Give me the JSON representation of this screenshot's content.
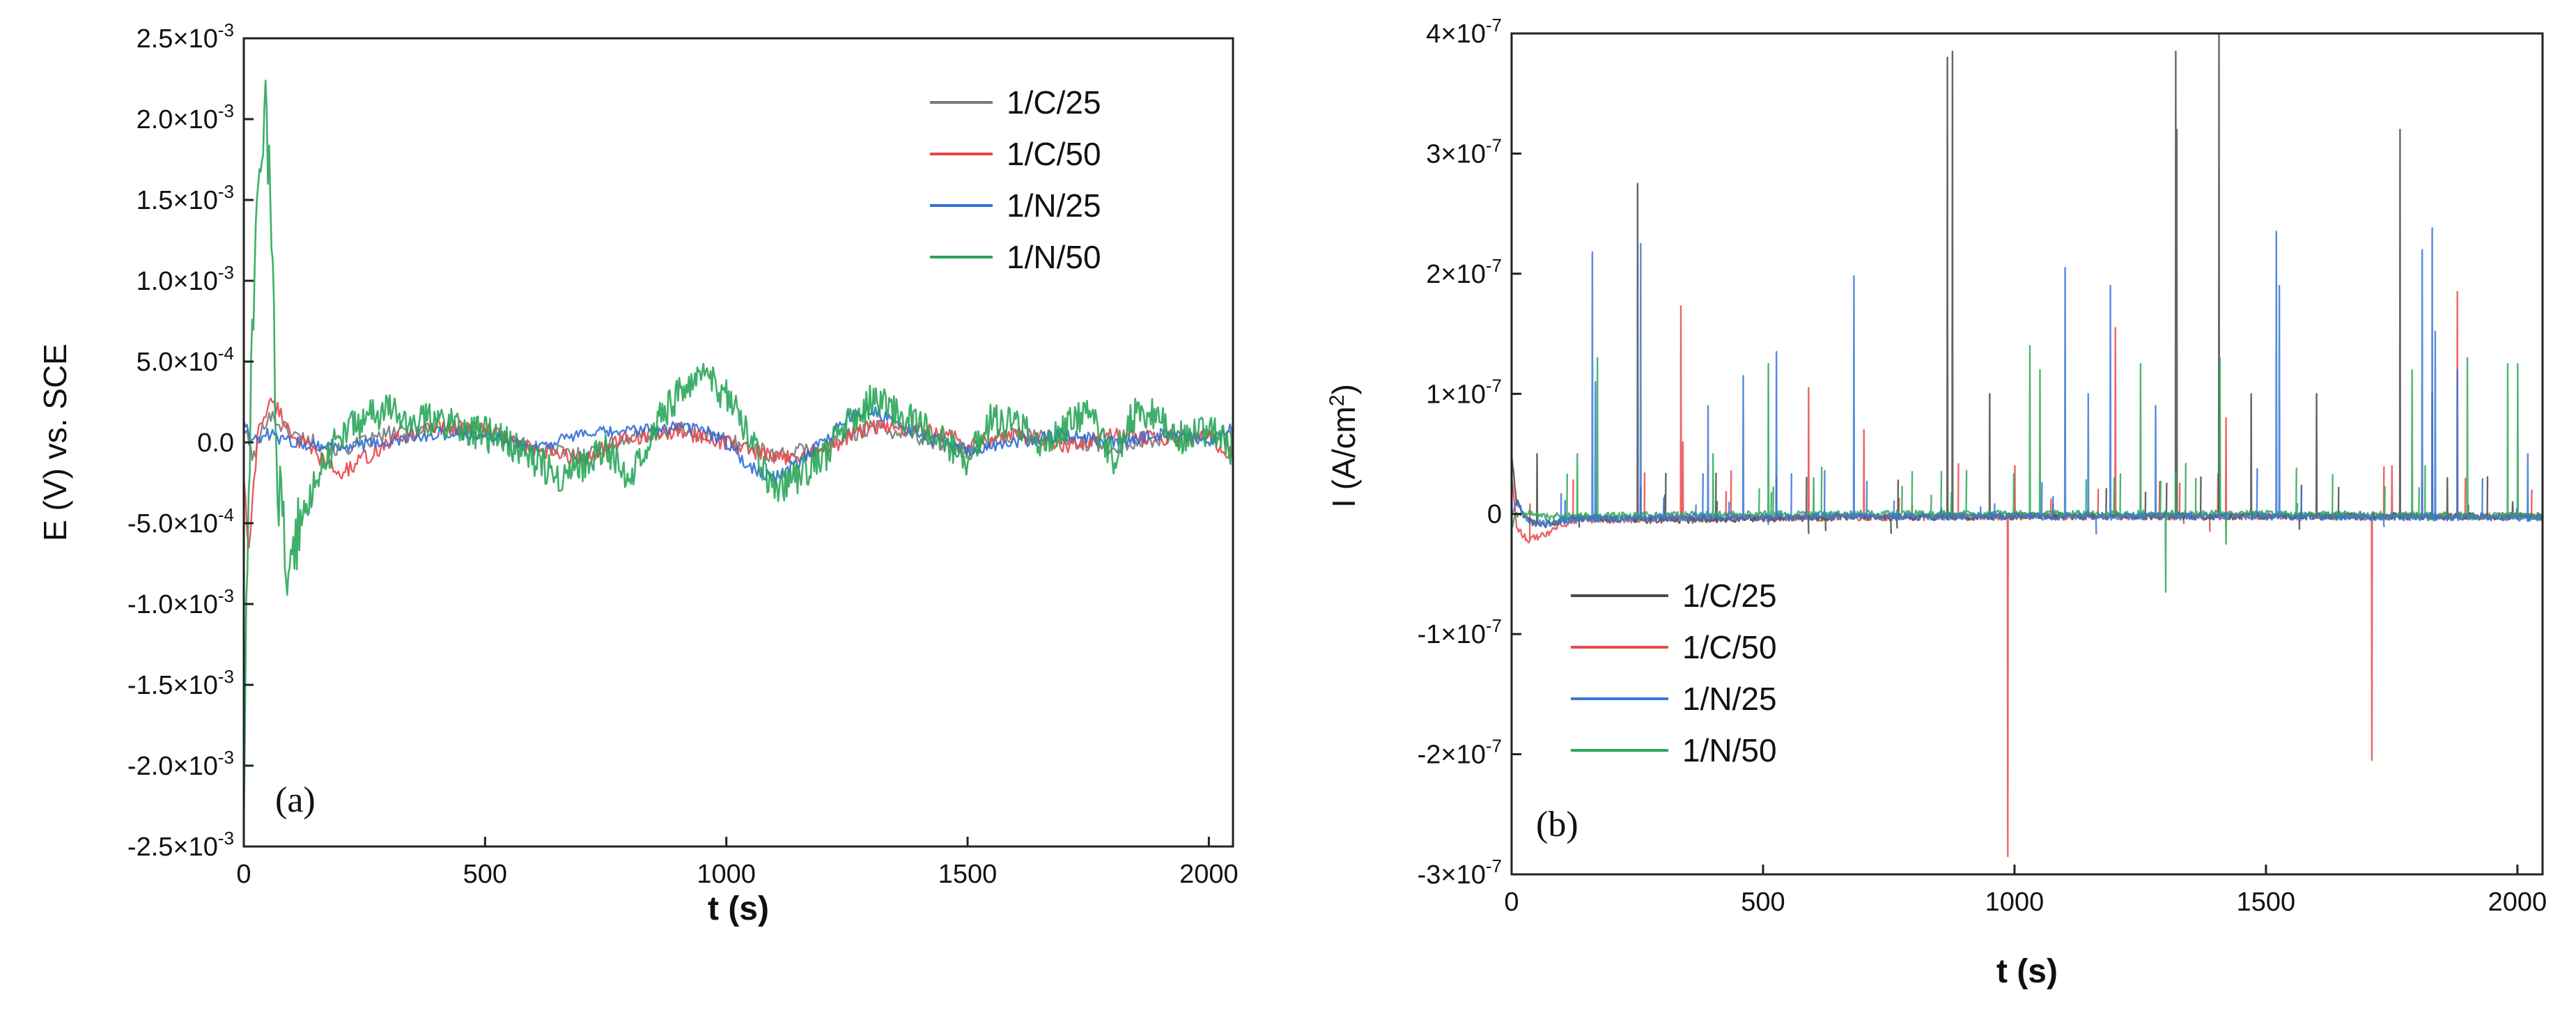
{
  "chart_data": [
    {
      "panel_label": "(a)",
      "type": "line",
      "xlabel": "t (s)",
      "ylabel": "E (V) vs. SCE",
      "xlim": [
        0,
        2050
      ],
      "ylim": [
        -0.0025,
        0.0025
      ],
      "x_ticks": [
        0,
        500,
        1000,
        1500,
        2000
      ],
      "y_ticks": [
        -0.0025,
        -0.002,
        -0.0015,
        -0.001,
        -0.0005,
        0,
        0.0005,
        0.001,
        0.0015,
        0.002,
        0.0025
      ],
      "x_tick_labels": [
        "0",
        "500",
        "1000",
        "1500",
        "2000"
      ],
      "y_tick_labels": [
        {
          "m": "-2.5",
          "e": "-3"
        },
        {
          "m": "-2.0",
          "e": "-3"
        },
        {
          "m": "-1.5",
          "e": "-3"
        },
        {
          "m": "-1.0",
          "e": "-3"
        },
        {
          "m": "-5.0",
          "e": "-4"
        },
        {
          "m": "0.0",
          "e": ""
        },
        {
          "m": "5.0",
          "e": "-4"
        },
        {
          "m": "1.0",
          "e": "-3"
        },
        {
          "m": "1.5",
          "e": "-3"
        },
        {
          "m": "2.0",
          "e": "-3"
        },
        {
          "m": "2.5",
          "e": "-3"
        }
      ],
      "legend_position": "top-right",
      "series": [
        {
          "name": "1/C/25",
          "color": "#7a7a7a",
          "x": [
            0,
            20,
            50,
            100,
            200,
            300,
            400,
            500,
            600,
            700,
            800,
            900,
            1000,
            1100,
            1200,
            1300,
            1400,
            1500,
            1600,
            1700,
            1800,
            1900,
            2000,
            2050
          ],
          "y": [
            0.0001,
            -0.0001,
            0.00018,
            5e-05,
            -5e-05,
            5e-05,
            0.0001,
            5e-05,
            -3e-05,
            -8e-05,
            3e-05,
            8e-05,
            2e-05,
            -8e-05,
            -3e-05,
            0.0001,
            3e-05,
            -5e-05,
            5e-05,
            2e-05,
            -3e-05,
            3e-05,
            4e-05,
            2e-05
          ]
        },
        {
          "name": "1/C/50",
          "color": "#e8474c",
          "x": [
            0,
            10,
            30,
            60,
            100,
            200,
            300,
            400,
            500,
            600,
            700,
            800,
            900,
            1000,
            1100,
            1200,
            1300,
            1400,
            1500,
            1600,
            1700,
            1800,
            1900,
            2000,
            2050
          ],
          "y": [
            -0.0002,
            -0.0007,
            0.0001,
            0.00026,
            5e-05,
            -0.0002,
            0.0,
            0.0001,
            8e-05,
            -5e-05,
            -0.0001,
            3e-05,
            7e-05,
            0.0,
            -0.0001,
            -5e-05,
            0.0001,
            8e-05,
            0.0,
            5e-05,
            -2e-05,
            5e-05,
            2e-05,
            3e-05,
            -8e-05
          ]
        },
        {
          "name": "1/N/25",
          "color": "#2f6fd6",
          "x": [
            0,
            20,
            50,
            100,
            200,
            300,
            400,
            500,
            600,
            700,
            800,
            900,
            950,
            1000,
            1050,
            1100,
            1150,
            1200,
            1250,
            1300,
            1350,
            1400,
            1500,
            1600,
            1700,
            1800,
            1900,
            2000,
            2050
          ],
          "y": [
            0.00015,
            0.0,
            5e-05,
            0.0,
            -3e-05,
            0.0,
            5e-05,
            5e-05,
            -3e-05,
            5e-05,
            7e-05,
            0.0001,
            8e-05,
            0.0,
            -0.00015,
            -0.00022,
            -0.00012,
            0.0,
            0.00015,
            0.0002,
            0.00012,
            5e-05,
            -5e-05,
            0.0,
            5e-05,
            0.0,
            5e-05,
            0.0,
            0.0001
          ]
        },
        {
          "name": "1/N/50",
          "color": "#2aa65a",
          "x": [
            0,
            5,
            15,
            30,
            45,
            55,
            70,
            90,
            110,
            150,
            200,
            250,
            300,
            350,
            400,
            450,
            500,
            550,
            600,
            650,
            700,
            750,
            800,
            850,
            900,
            950,
            1000,
            1050,
            1100,
            1150,
            1200,
            1250,
            1300,
            1350,
            1400,
            1450,
            1500,
            1550,
            1600,
            1650,
            1700,
            1750,
            1800,
            1850,
            1900,
            1950,
            2000,
            2050
          ],
          "y": [
            -0.0023,
            -0.0012,
            0.0004,
            0.0015,
            0.00215,
            0.0015,
            -0.0002,
            -0.0008,
            -0.0006,
            -0.0002,
            5e-05,
            0.00015,
            0.0002,
            0.00012,
            0.00015,
            0.0001,
            5e-05,
            0.0,
            -0.0001,
            -0.0002,
            -0.00015,
            -5e-05,
            -0.0002,
            0.0001,
            0.0003,
            0.0004,
            0.0003,
            0.0,
            -0.0003,
            -0.0002,
            -0.0001,
            0.0001,
            0.00025,
            0.0002,
            0.0001,
            0.0,
            -0.0001,
            0.00015,
            0.0001,
            0.0,
            0.0001,
            0.0002,
            -0.0001,
            0.0002,
            0.00015,
            0.0,
            0.0001,
            -5e-05
          ]
        }
      ]
    },
    {
      "panel_label": "(b)",
      "type": "line",
      "xlabel": "t (s)",
      "ylabel": "I (A/cm",
      "ylabel_sup": "2",
      "ylabel_end": ")",
      "xlim": [
        0,
        2050
      ],
      "ylim": [
        -3e-07,
        4e-07
      ],
      "x_ticks": [
        0,
        500,
        1000,
        1500,
        2000
      ],
      "y_ticks": [
        -3e-07,
        -2e-07,
        -1e-07,
        0,
        1e-07,
        2e-07,
        3e-07,
        4e-07
      ],
      "x_tick_labels": [
        "0",
        "500",
        "1000",
        "1500",
        "2000"
      ],
      "y_tick_labels": [
        {
          "m": "-3",
          "e": "-7"
        },
        {
          "m": "-2",
          "e": "-7"
        },
        {
          "m": "-1",
          "e": "-7"
        },
        {
          "m": "0",
          "e": ""
        },
        {
          "m": "1",
          "e": "-7"
        },
        {
          "m": "2",
          "e": "-7"
        },
        {
          "m": "3",
          "e": "-7"
        },
        {
          "m": "4",
          "e": "-7"
        }
      ],
      "legend_position": "bottom-left",
      "series": [
        {
          "name": "1/C/25",
          "color": "#4a4a4a",
          "baseline_x": [
            0,
            10,
            30,
            60,
            120,
            300,
            600,
            1000,
            1500,
            2050
          ],
          "baseline_y": [
            5e-08,
            1e-08,
            -5e-09,
            -1e-08,
            -3e-09,
            -5e-09,
            -3e-09,
            -2e-09,
            -2e-09,
            -2e-09
          ],
          "spikes": [
            [
              50,
              5e-08
            ],
            [
              250,
              2.75e-07
            ],
            [
              865,
              3.8e-07
            ],
            [
              875,
              3.85e-07
            ],
            [
              950,
              1e-07
            ],
            [
              1320,
              3.85e-07
            ],
            [
              1322,
              3.2e-07
            ],
            [
              1405,
              4e-07
            ],
            [
              1470,
              1e-07
            ],
            [
              1600,
              1e-07
            ],
            [
              1765,
              3.2e-07
            ],
            [
              1830,
              1e-07
            ],
            [
              1860,
              3e-08
            ],
            [
              1990,
              1e-08
            ]
          ]
        },
        {
          "name": "1/C/50",
          "color": "#e84a4a",
          "baseline_x": [
            0,
            10,
            30,
            60,
            120,
            300,
            600,
            1000,
            1500,
            2050
          ],
          "baseline_y": [
            3e-08,
            -1e-08,
            -2.2e-08,
            -1.8e-08,
            -5e-09,
            -4e-09,
            -3e-09,
            -2e-09,
            -2e-09,
            -2e-09
          ],
          "spikes": [
            [
              335,
              1.73e-07
            ],
            [
              340,
              6e-08
            ],
            [
              590,
              1.05e-07
            ],
            [
              700,
              7e-08
            ],
            [
              985,
              -2.85e-07
            ],
            [
              1000,
              4e-08
            ],
            [
              1200,
              1.55e-07
            ],
            [
              1420,
              8e-08
            ],
            [
              1710,
              -2.05e-07
            ],
            [
              1750,
              4e-08
            ],
            [
              1880,
              1.85e-07
            ]
          ]
        },
        {
          "name": "1/N/25",
          "color": "#3a78d8",
          "baseline_x": [
            0,
            10,
            30,
            60,
            120,
            300,
            600,
            1000,
            1500,
            2050
          ],
          "baseline_y": [
            0,
            1e-08,
            -5e-09,
            -8e-09,
            -5e-09,
            -3e-09,
            -2e-09,
            -2e-09,
            -2e-09,
            -3e-09
          ],
          "spikes": [
            [
              160,
              2.18e-07
            ],
            [
              165,
              1.1e-07
            ],
            [
              255,
              2.25e-07
            ],
            [
              390,
              9e-08
            ],
            [
              460,
              1.15e-07
            ],
            [
              525,
              1.35e-07
            ],
            [
              680,
              1.98e-07
            ],
            [
              1100,
              2.05e-07
            ],
            [
              1145,
              1e-07
            ],
            [
              1190,
              1.9e-07
            ],
            [
              1280,
              9e-08
            ],
            [
              1520,
              2.35e-07
            ],
            [
              1525,
              1.9e-07
            ],
            [
              1810,
              2.2e-07
            ],
            [
              1830,
              2.38e-07
            ],
            [
              1835,
              1.52e-07
            ],
            [
              1880,
              1.2e-07
            ],
            [
              2020,
              5e-08
            ]
          ]
        },
        {
          "name": "1/N/50",
          "color": "#2fa858",
          "baseline_x": [
            0,
            10,
            30,
            60,
            120,
            300,
            600,
            1000,
            1500,
            2050
          ],
          "baseline_y": [
            -1e-08,
            0,
            2e-09,
            -2e-09,
            -2e-09,
            -1e-09,
            0,
            0,
            0,
            -2e-09
          ],
          "spikes": [
            [
              130,
              5e-08
            ],
            [
              170,
              1.3e-07
            ],
            [
              400,
              5e-08
            ],
            [
              510,
              1.25e-07
            ],
            [
              600,
              3e-08
            ],
            [
              1030,
              1.4e-07
            ],
            [
              1050,
              1.2e-07
            ],
            [
              1250,
              1.25e-07
            ],
            [
              1300,
              -6.5e-08
            ],
            [
              1320,
              3.5e-08
            ],
            [
              1408,
              1.3e-07
            ],
            [
              1420,
              -2.5e-08
            ],
            [
              1790,
              1.2e-07
            ],
            [
              1900,
              1.3e-07
            ],
            [
              1980,
              1.25e-07
            ],
            [
              2000,
              1.25e-07
            ]
          ]
        }
      ]
    }
  ]
}
